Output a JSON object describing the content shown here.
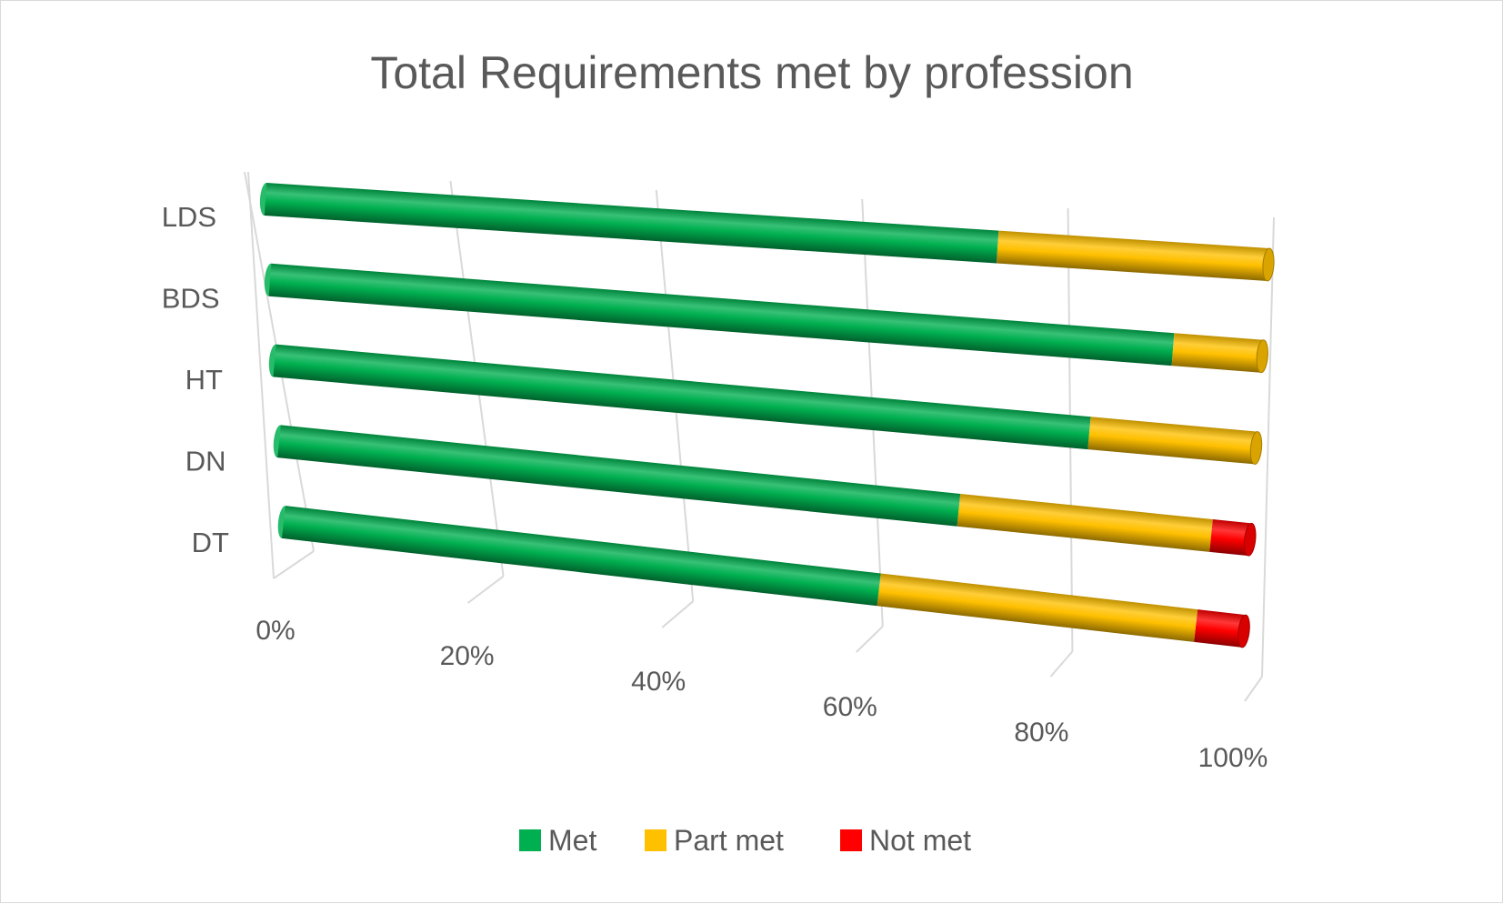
{
  "chart_data": {
    "type": "bar",
    "orientation": "horizontal",
    "stacking": "percent",
    "style": "3d-cylinder",
    "title": "Total Requirements met by profession",
    "categories": [
      "LDS",
      "BDS",
      "HT",
      "DN",
      "DT"
    ],
    "series": [
      {
        "name": "Met",
        "color": "#00b050",
        "values": [
          73,
          91,
          83,
          70,
          62
        ]
      },
      {
        "name": "Part met",
        "color": "#ffc000",
        "values": [
          27,
          9,
          17,
          26,
          33
        ]
      },
      {
        "name": "Not met",
        "color": "#ff0000",
        "values": [
          0,
          0,
          0,
          4,
          5
        ]
      }
    ],
    "x_ticks": [
      "0%",
      "20%",
      "40%",
      "60%",
      "80%",
      "100%"
    ],
    "xlim": [
      0,
      100
    ],
    "grid": true,
    "legend_position": "bottom"
  }
}
